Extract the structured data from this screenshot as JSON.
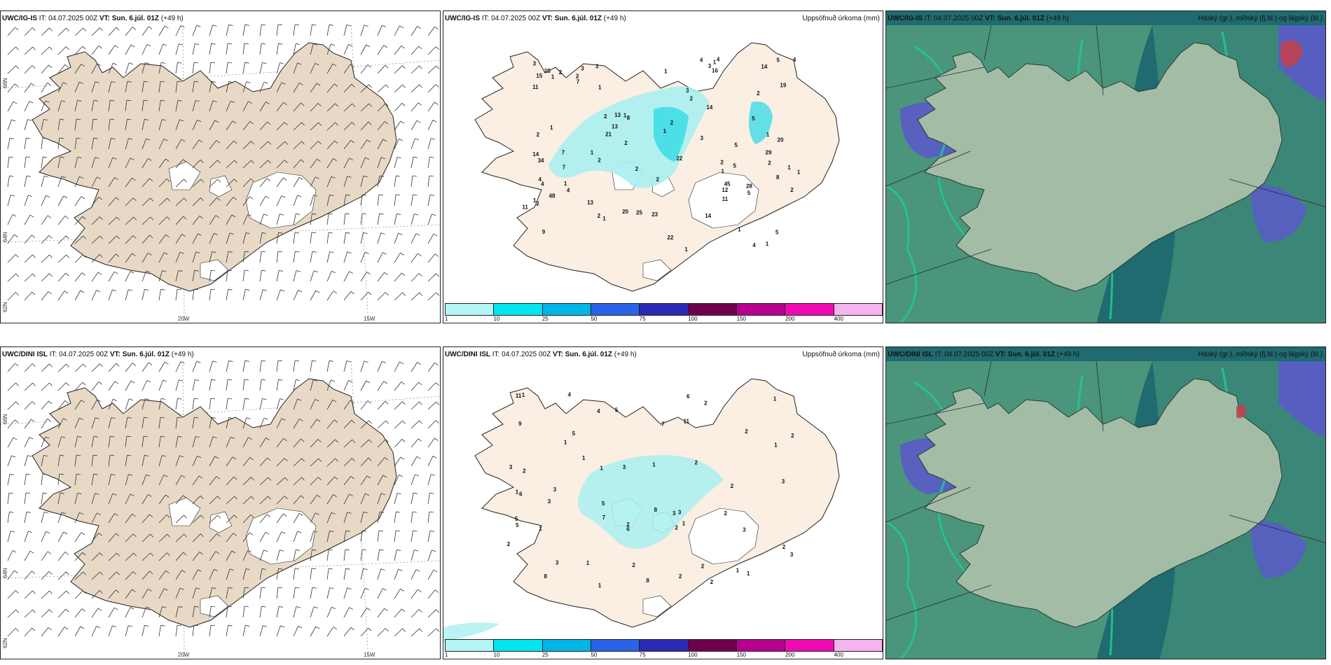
{
  "rows": [
    {
      "model": "UWC/IG-IS",
      "it_label": "IT:",
      "it_value": "04.07.2025 00Z",
      "vt_label": "VT:",
      "vt_value": "Sun. 6.júl. 01Z",
      "lead": "(+49 h)",
      "lat_labels": [
        "66N",
        "64N",
        "62N"
      ],
      "lon_labels": [
        "20W",
        "15W"
      ],
      "precip_numbers": [
        "1",
        "2",
        "9",
        "3",
        "8",
        "1",
        "2",
        "16",
        "2",
        "1",
        "11",
        "14",
        "15",
        "5",
        "20",
        "20",
        "2",
        "22",
        "1",
        "4",
        "4",
        "14",
        "21",
        "8",
        "4",
        "2",
        "45",
        "34",
        "7",
        "5",
        "22",
        "14",
        "13",
        "2",
        "29",
        "5",
        "12",
        "7",
        "23",
        "48",
        "19",
        "4",
        "1",
        "25",
        "28",
        "13",
        "11",
        "28",
        "3",
        "2",
        "1",
        "13",
        "5",
        "2",
        "11",
        "4",
        "14",
        "3",
        "7",
        "2",
        "5",
        "1",
        "2",
        "4",
        "1",
        "1",
        "2",
        "1",
        "1",
        "1",
        "2",
        "3",
        "2",
        "1",
        "1",
        "1",
        "4",
        "2",
        "1",
        "2",
        "2",
        "3",
        "3",
        "5",
        "1",
        "1"
      ]
    },
    {
      "model": "UWC/DINI ISL",
      "it_label": "IT:",
      "it_value": "04.07.2025 00Z",
      "vt_label": "VT:",
      "vt_value": "Sun. 6.júl. 01Z",
      "lead": "(+49 h)",
      "lat_labels": [
        "66N",
        "64N",
        "62N"
      ],
      "lon_labels": [
        "20W",
        "15W"
      ],
      "precip_numbers": [
        "1",
        "2",
        "1",
        "2",
        "5",
        "3",
        "2",
        "3",
        "1",
        "1",
        "3",
        "3",
        "1",
        "2",
        "3",
        "2",
        "2",
        "5",
        "1",
        "1",
        "5",
        "3",
        "6",
        "8",
        "11",
        "6",
        "2",
        "6",
        "3",
        "3",
        "3",
        "7",
        "5",
        "9",
        "8",
        "4",
        "2",
        "2",
        "1",
        "5",
        "3",
        "7",
        "2",
        "4",
        "2",
        "1",
        "1",
        "2",
        "2",
        "1",
        "11",
        "2",
        "1",
        "1",
        "2",
        "8",
        "1"
      ]
    }
  ],
  "precip_title": "Uppsöfnuð úrkoma (mm)",
  "cloud_title": "Háský (gr.), miðský (fj.bl.) og lágský (bl.)",
  "colorbar": {
    "labels": [
      "1",
      "10",
      "25",
      "50",
      "75",
      "100",
      "150",
      "200",
      "400"
    ],
    "colors": [
      "#b4f5f5",
      "#00e5ee",
      "#00b4e6",
      "#2a64e6",
      "#2a2ab4",
      "#6e0050",
      "#b4008c",
      "#f00ab4",
      "#f5b4f0"
    ]
  },
  "colors": {
    "land": "#e8d9c6",
    "land_precip": "#fbeee2",
    "precip_light": "#a8f0f0",
    "precip_mid": "#3cdce6",
    "sea_dark": "#1f6b70",
    "cloud_green": "#4f9a7c",
    "cloud_bright": "#22c88c",
    "cloud_blue": "#5a5ac8",
    "cloud_red": "#c04050"
  }
}
